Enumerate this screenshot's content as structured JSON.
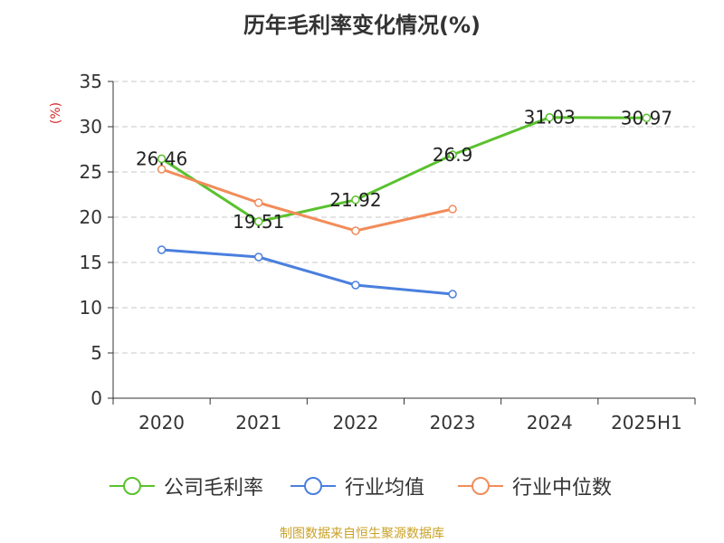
{
  "chart_data": {
    "type": "line",
    "title": "历年毛利率变化情况(%)",
    "ylabel": "(%)",
    "xlabel": "",
    "categories": [
      "2020",
      "2021",
      "2022",
      "2023",
      "2024",
      "2025H1"
    ],
    "ylim": [
      0,
      35
    ],
    "yticks": [
      0,
      5,
      10,
      15,
      20,
      25,
      30,
      35
    ],
    "grid": "horizontal dashed",
    "legend_position": "bottom",
    "series": [
      {
        "name": "公司毛利率",
        "color": "#5ac12e",
        "values": [
          26.46,
          19.51,
          21.92,
          26.9,
          31.03,
          30.97
        ],
        "data_labels": [
          "26.46",
          "19.51",
          "21.92",
          "26.9",
          "31.03",
          "30.97"
        ]
      },
      {
        "name": "行业均值",
        "color": "#4a7fde",
        "values": [
          16.4,
          15.6,
          12.5,
          11.5,
          null,
          null
        ]
      },
      {
        "name": "行业中位数",
        "color": "#f28c5a",
        "values": [
          25.3,
          21.6,
          18.5,
          20.9,
          null,
          null
        ]
      }
    ],
    "source": "制图数据来自恒生聚源数据库",
    "ylabel_color": "#d62728",
    "source_color": "#c9a227"
  }
}
